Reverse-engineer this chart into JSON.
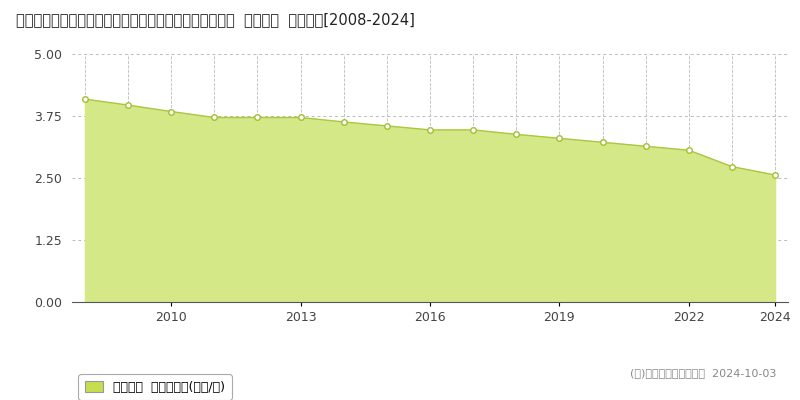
{
  "title": "佐賀県佐賀市川副町大字大託間字二本松八角４９９番５  基準地価  地価推移[2008-2024]",
  "years": [
    2008,
    2009,
    2010,
    2011,
    2012,
    2013,
    2014,
    2015,
    2016,
    2017,
    2018,
    2019,
    2020,
    2021,
    2022,
    2023,
    2024
  ],
  "values": [
    4.09,
    3.97,
    3.84,
    3.72,
    3.72,
    3.72,
    3.63,
    3.55,
    3.47,
    3.47,
    3.38,
    3.3,
    3.22,
    3.14,
    3.06,
    2.73,
    2.56
  ],
  "line_color": "#a8c840",
  "fill_color": "#d4e888",
  "marker_color": "#ffffff",
  "marker_edge_color": "#a0c030",
  "background_color": "#ffffff",
  "grid_color_h": "#bbbbbb",
  "grid_color_v": "#bbbbbb",
  "ylim": [
    0,
    5
  ],
  "yticks": [
    0,
    1.25,
    2.5,
    3.75,
    5
  ],
  "xticks": [
    2010,
    2013,
    2016,
    2019,
    2022,
    2024
  ],
  "legend_label": "基準地価  平均坂単価(万円/坂)",
  "legend_color": "#c8dc50",
  "copyright_text": "(Ｃ)土地価格ドットコム  2024-10-03",
  "title_fontsize": 10.5,
  "axis_fontsize": 9,
  "legend_fontsize": 9,
  "copyright_fontsize": 8
}
